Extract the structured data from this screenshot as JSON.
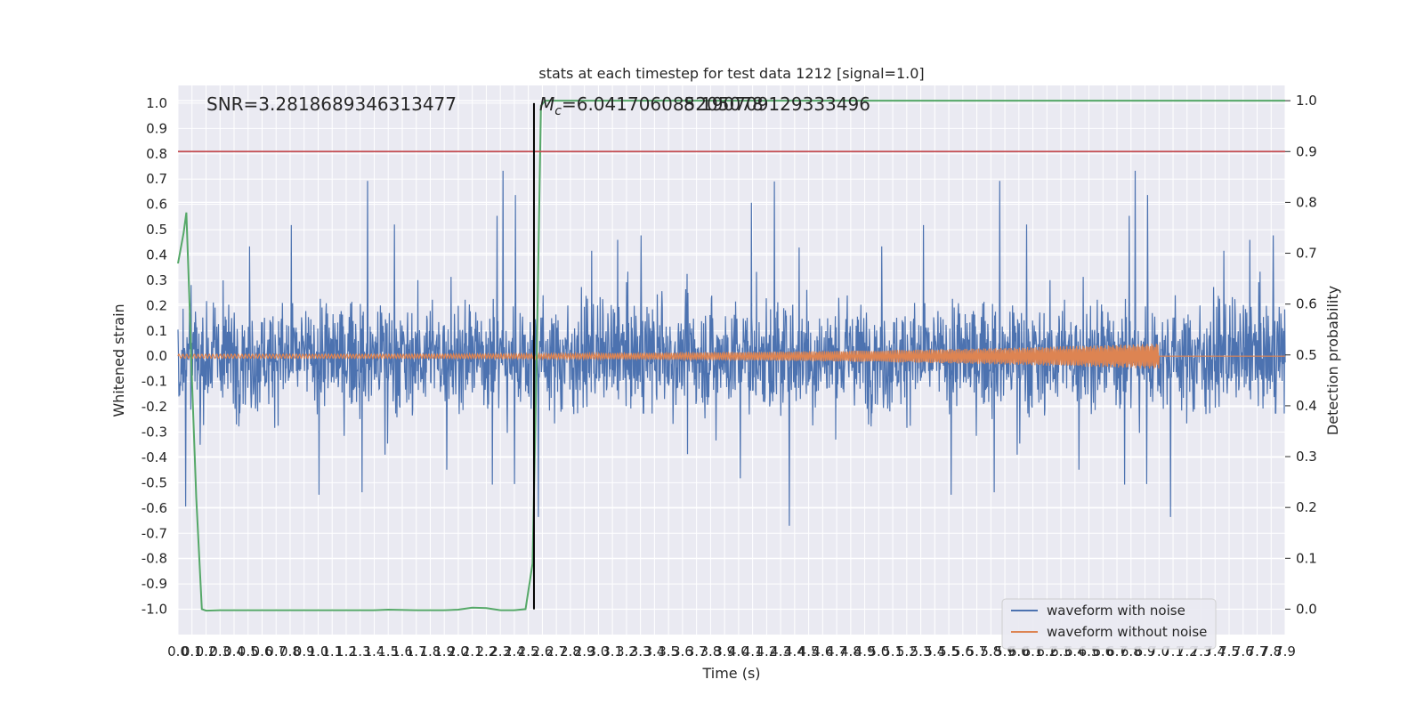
{
  "chart_data": {
    "type": "line",
    "title": "stats at each timestep for test data 1212 [signal=1.0]",
    "xlabel": "Time (s)",
    "ylabel": "Whitened strain",
    "y2label": "Detection probability",
    "xlim": [
      0.0,
      7.9
    ],
    "ylim": [
      -1.1,
      1.07
    ],
    "y2lim": [
      -0.05,
      1.03
    ],
    "x_tick_labels": [
      "0.0",
      "0.1",
      "0.2",
      "0.3",
      "0.4",
      "0.5",
      "0.6",
      "0.7",
      "0.8",
      "0.9",
      "1.0",
      "1.1",
      "1.2",
      "1.3",
      "1.4",
      "1.5",
      "1.6",
      "1.7",
      "1.8",
      "1.9",
      "2.0",
      "2.1",
      "2.2",
      "2.3",
      "2.4",
      "2.5",
      "2.6",
      "2.7",
      "2.8",
      "2.9",
      "3.0",
      "3.1",
      "3.2",
      "3.3",
      "3.4",
      "3.5",
      "3.6",
      "3.7",
      "3.8",
      "3.9",
      "4.0",
      "4.1",
      "4.2",
      "4.3",
      "4.4",
      "4.5",
      "4.6",
      "4.7",
      "4.8",
      "4.9",
      "5.0",
      "5.1",
      "5.2",
      "5.3",
      "5.4",
      "5.5",
      "5.6",
      "5.7",
      "5.8",
      "5.9",
      "6.0",
      "6.1",
      "6.2",
      "6.3",
      "6.4",
      "6.5",
      "6.6",
      "6.7",
      "6.8",
      "6.9",
      "7.0",
      "7.1",
      "7.2",
      "7.3",
      "7.4",
      "7.5",
      "7.6",
      "7.7",
      "7.8",
      "7.9"
    ],
    "y_tick_labels": [
      "1.0",
      "0.9",
      "0.8",
      "0.7",
      "0.6",
      "0.5",
      "0.4",
      "0.3",
      "0.2",
      "0.1",
      "0.0",
      "-0.1",
      "-0.2",
      "-0.3",
      "-0.4",
      "-0.5",
      "-0.6",
      "-0.7",
      "-0.8",
      "-0.9",
      "-1.0"
    ],
    "y2_tick_labels": [
      "1.0",
      "0.9",
      "0.8",
      "0.7",
      "0.6",
      "0.5",
      "0.4",
      "0.3",
      "0.2",
      "0.1",
      "0.0"
    ],
    "annotations": {
      "snr": "SNR=3.2818689346313477",
      "mc_symbol": "M",
      "mc_sub": "c",
      "mc_value": "=6.041706085205078",
      "overlap": "8.190709129333496"
    },
    "vline_x": 2.54,
    "threshold_y2": 0.9,
    "series": [
      {
        "name": "waveform with noise",
        "color": "#4c72b0",
        "kind": "noise",
        "seed": 1212
      },
      {
        "name": "waveform without noise",
        "color": "#dd8452",
        "kind": "chirp",
        "amplitude_start": 0.008,
        "amplitude_end": 0.05,
        "end_x": 7.0
      },
      {
        "color": "#55a868",
        "axis": "right",
        "kind": "probability",
        "points": [
          [
            0.0,
            0.68
          ],
          [
            0.04,
            0.74
          ],
          [
            0.06,
            0.78
          ],
          [
            0.08,
            0.62
          ],
          [
            0.1,
            0.45
          ],
          [
            0.13,
            0.22
          ],
          [
            0.17,
            0.0
          ],
          [
            0.2,
            -0.003
          ],
          [
            0.3,
            -0.002
          ],
          [
            0.6,
            -0.002
          ],
          [
            1.0,
            -0.002
          ],
          [
            1.4,
            -0.002
          ],
          [
            1.5,
            -0.001
          ],
          [
            1.7,
            -0.002
          ],
          [
            1.9,
            -0.002
          ],
          [
            2.0,
            -0.001
          ],
          [
            2.1,
            0.003
          ],
          [
            2.2,
            0.002
          ],
          [
            2.3,
            -0.002
          ],
          [
            2.4,
            -0.002
          ],
          [
            2.48,
            0.0
          ],
          [
            2.53,
            0.09
          ],
          [
            2.56,
            0.5
          ],
          [
            2.59,
            0.99
          ],
          [
            2.62,
            1.0
          ],
          [
            3.0,
            1.0
          ],
          [
            5.0,
            1.0
          ],
          [
            7.9,
            1.0
          ]
        ]
      },
      {
        "color": "#c44e52",
        "axis": "right",
        "kind": "threshold"
      }
    ],
    "legend": {
      "placement": "lower-right",
      "entries": [
        "waveform with noise",
        "waveform without noise"
      ]
    },
    "grid": true,
    "colors": {
      "background": "#eaeaf2",
      "grid": "#ffffff",
      "vline": "#000000"
    }
  }
}
